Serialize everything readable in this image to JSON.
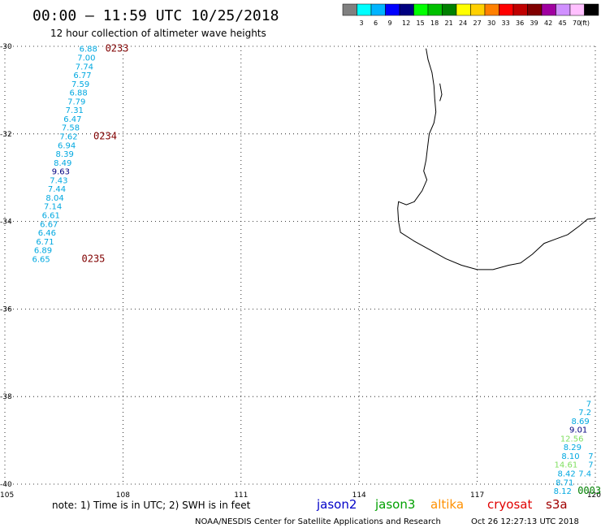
{
  "header": {
    "title": "00:00 – 11:59 UTC 10/25/2018",
    "subtitle": "12 hour collection of altimeter wave heights"
  },
  "legend": {
    "unit": "(ft)",
    "swatches": [
      {
        "color": "#808080",
        "label": ""
      },
      {
        "color": "#00ffff",
        "label": "3"
      },
      {
        "color": "#00b4ff",
        "label": "6"
      },
      {
        "color": "#0000ff",
        "label": "9"
      },
      {
        "color": "#000080",
        "label": "12"
      },
      {
        "color": "#00ff00",
        "label": "15"
      },
      {
        "color": "#00c000",
        "label": "18"
      },
      {
        "color": "#008000",
        "label": "21"
      },
      {
        "color": "#ffff00",
        "label": "24"
      },
      {
        "color": "#ffd000",
        "label": "27"
      },
      {
        "color": "#ff8000",
        "label": "30"
      },
      {
        "color": "#ff0000",
        "label": "33"
      },
      {
        "color": "#c00000",
        "label": "36"
      },
      {
        "color": "#800000",
        "label": "39"
      },
      {
        "color": "#a000a0",
        "label": "42"
      },
      {
        "color": "#d090ff",
        "label": "45"
      },
      {
        "color": "#ffc0ff",
        "label": "70"
      },
      {
        "color": "#000000",
        "label": ""
      }
    ]
  },
  "map": {
    "lon_range": [
      105,
      120
    ],
    "lat_range": [
      -40,
      -30
    ],
    "lat_ticks": [
      {
        "value": -30,
        "label": "-30"
      },
      {
        "value": -32,
        "label": "-32"
      },
      {
        "value": -34,
        "label": "-34"
      },
      {
        "value": -36,
        "label": "-36"
      },
      {
        "value": -38,
        "label": "-38"
      },
      {
        "value": -40,
        "label": "-40"
      }
    ],
    "lon_ticks": [
      {
        "value": 105,
        "label": "105"
      },
      {
        "value": 108,
        "label": "108"
      },
      {
        "value": 111,
        "label": "111"
      },
      {
        "value": 114,
        "label": "114"
      },
      {
        "value": 117,
        "label": "117"
      },
      {
        "value": 120,
        "label": "120"
      }
    ],
    "coastline": [
      [
        115.7,
        -30.05
      ],
      [
        115.75,
        -30.3
      ],
      [
        115.85,
        -30.6
      ],
      [
        115.9,
        -30.9
      ],
      [
        115.92,
        -31.2
      ],
      [
        115.95,
        -31.5
      ],
      [
        115.9,
        -31.75
      ],
      [
        115.78,
        -32.0
      ],
      [
        115.74,
        -32.3
      ],
      [
        115.7,
        -32.6
      ],
      [
        115.64,
        -32.85
      ],
      [
        115.72,
        -33.05
      ],
      [
        115.6,
        -33.3
      ],
      [
        115.4,
        -33.55
      ],
      [
        115.2,
        -33.62
      ],
      [
        115.0,
        -33.55
      ],
      [
        114.98,
        -33.7
      ],
      [
        115.0,
        -34.0
      ],
      [
        115.05,
        -34.25
      ],
      [
        115.4,
        -34.45
      ],
      [
        115.8,
        -34.65
      ],
      [
        116.2,
        -34.85
      ],
      [
        116.6,
        -35.0
      ],
      [
        117.0,
        -35.1
      ],
      [
        117.4,
        -35.1
      ],
      [
        117.8,
        -35.0
      ],
      [
        118.1,
        -34.95
      ],
      [
        118.4,
        -34.75
      ],
      [
        118.7,
        -34.5
      ],
      [
        119.0,
        -34.4
      ],
      [
        119.3,
        -34.3
      ],
      [
        119.6,
        -34.1
      ],
      [
        119.8,
        -33.95
      ],
      [
        120.0,
        -33.93
      ]
    ],
    "island": [
      [
        116.05,
        -30.85
      ],
      [
        116.1,
        -31.1
      ],
      [
        116.05,
        -31.25
      ]
    ]
  },
  "tracks": [
    {
      "name": "west",
      "points": [
        {
          "lon": 107.35,
          "lat": -30.05,
          "text": "6.88",
          "color": "#00a8e0"
        },
        {
          "lon": 107.3,
          "lat": -30.25,
          "text": "7.00",
          "color": "#00a8e0"
        },
        {
          "lon": 107.25,
          "lat": -30.45,
          "text": "7.74",
          "color": "#00a8e0"
        },
        {
          "lon": 107.2,
          "lat": -30.65,
          "text": "6.77",
          "color": "#00a8e0"
        },
        {
          "lon": 107.15,
          "lat": -30.85,
          "text": "7.59",
          "color": "#00a8e0"
        },
        {
          "lon": 107.1,
          "lat": -31.05,
          "text": "6.88",
          "color": "#00a8e0"
        },
        {
          "lon": 107.05,
          "lat": -31.25,
          "text": "7.79",
          "color": "#00a8e0"
        },
        {
          "lon": 107.0,
          "lat": -31.45,
          "text": "7.31",
          "color": "#00a8e0"
        },
        {
          "lon": 106.95,
          "lat": -31.65,
          "text": "6.47",
          "color": "#00a8e0"
        },
        {
          "lon": 106.9,
          "lat": -31.85,
          "text": "7.58",
          "color": "#00a8e0"
        },
        {
          "lon": 106.85,
          "lat": -32.05,
          "text": "7.62",
          "color": "#00a8e0"
        },
        {
          "lon": 106.8,
          "lat": -32.25,
          "text": "6.94",
          "color": "#00a8e0"
        },
        {
          "lon": 106.75,
          "lat": -32.45,
          "text": "8.39",
          "color": "#00a8e0"
        },
        {
          "lon": 106.7,
          "lat": -32.65,
          "text": "8.49",
          "color": "#00a8e0"
        },
        {
          "lon": 106.65,
          "lat": -32.85,
          "text": "9.63",
          "color": "#000080"
        },
        {
          "lon": 106.6,
          "lat": -33.05,
          "text": "7.43",
          "color": "#00a8e0"
        },
        {
          "lon": 106.55,
          "lat": -33.25,
          "text": "7.44",
          "color": "#00a8e0"
        },
        {
          "lon": 106.5,
          "lat": -33.45,
          "text": "8.04",
          "color": "#00a8e0"
        },
        {
          "lon": 106.45,
          "lat": -33.65,
          "text": "7.14",
          "color": "#00a8e0"
        },
        {
          "lon": 106.4,
          "lat": -33.85,
          "text": "6.61",
          "color": "#00a8e0"
        },
        {
          "lon": 106.35,
          "lat": -34.05,
          "text": "6.67",
          "color": "#00a8e0"
        },
        {
          "lon": 106.3,
          "lat": -34.25,
          "text": "6.46",
          "color": "#00a8e0"
        },
        {
          "lon": 106.25,
          "lat": -34.45,
          "text": "6.71",
          "color": "#00a8e0"
        },
        {
          "lon": 106.2,
          "lat": -34.65,
          "text": "6.89",
          "color": "#00a8e0"
        },
        {
          "lon": 106.15,
          "lat": -34.85,
          "text": "6.65",
          "color": "#00a8e0"
        }
      ],
      "times": [
        {
          "lon": 107.55,
          "lat": -30.05,
          "text": "0233",
          "color": "#800000"
        },
        {
          "lon": 107.25,
          "lat": -32.05,
          "text": "0234",
          "color": "#800000"
        },
        {
          "lon": 106.95,
          "lat": -34.85,
          "text": "0235",
          "color": "#800000"
        }
      ]
    },
    {
      "name": "southeast",
      "points": [
        {
          "lon": 119.9,
          "lat": -38.15,
          "text": "7",
          "color": "#00a8e0"
        },
        {
          "lon": 119.9,
          "lat": -38.35,
          "text": "7.2",
          "color": "#00a8e0"
        },
        {
          "lon": 119.85,
          "lat": -38.55,
          "text": "8.69",
          "color": "#00a8e0"
        },
        {
          "lon": 119.8,
          "lat": -38.75,
          "text": "9.01",
          "color": "#000080"
        },
        {
          "lon": 119.7,
          "lat": -38.95,
          "text": "12.56",
          "color": "#80e060"
        },
        {
          "lon": 119.65,
          "lat": -39.15,
          "text": "8.29",
          "color": "#00a8e0"
        },
        {
          "lon": 119.6,
          "lat": -39.35,
          "text": "8.10",
          "color": "#00a8e0"
        },
        {
          "lon": 119.55,
          "lat": -39.55,
          "text": "14.61",
          "color": "#80e060"
        },
        {
          "lon": 119.5,
          "lat": -39.75,
          "text": "8.42",
          "color": "#00a8e0"
        },
        {
          "lon": 119.45,
          "lat": -39.95,
          "text": "8.71",
          "color": "#00a8e0"
        },
        {
          "lon": 119.4,
          "lat": -40.15,
          "text": "8.12",
          "color": "#00a8e0"
        },
        {
          "lon": 119.95,
          "lat": -39.35,
          "text": "7",
          "color": "#00a8e0"
        },
        {
          "lon": 119.95,
          "lat": -39.55,
          "text": "7",
          "color": "#00a8e0"
        },
        {
          "lon": 119.9,
          "lat": -39.75,
          "text": "7.4",
          "color": "#00a8e0"
        }
      ],
      "times": [
        {
          "lon": 119.55,
          "lat": -40.15,
          "text": "0003",
          "color": "#008000"
        }
      ]
    }
  ],
  "note": "note:  1) Time is in UTC;  2) SWH is in feet",
  "satellites": [
    {
      "name": "jason2",
      "color": "#0000c8"
    },
    {
      "name": "jason3",
      "color": "#00a000"
    },
    {
      "name": "altika",
      "color": "#ff9000"
    },
    {
      "name": "cryosat",
      "color": "#e00000"
    },
    {
      "name": "s3a",
      "color": "#a00000"
    }
  ],
  "footer": {
    "credit": "NOAA/NESDIS Center for Satellite Applications and Research",
    "timestamp": "Oct 26 12:27:13 UTC 2018"
  }
}
